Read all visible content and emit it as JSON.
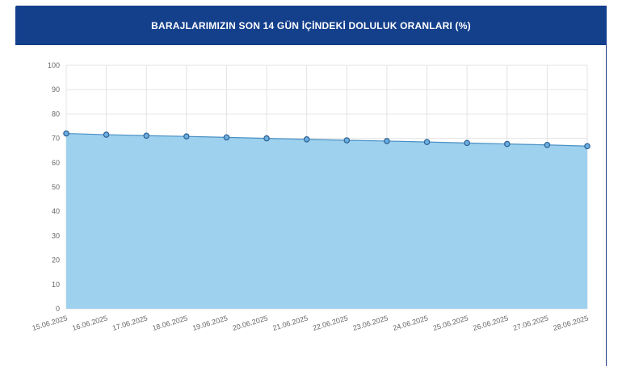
{
  "header": {
    "title": "BARAJLARIMIZIN SON 14 GÜN İÇİNDEKİ DOLULUK ORANLARI (%)"
  },
  "colors": {
    "header_bg": "#133f8b",
    "area_fill": "#9dd1ee",
    "line": "#4a90c4",
    "marker_stroke": "#2e5f93",
    "grid": "#e3e3e3"
  },
  "chart_data": {
    "type": "area",
    "title": "BARAJLARIMIZIN SON 14 GÜN İÇİNDEKİ DOLULUK ORANLARI (%)",
    "xlabel": "",
    "ylabel": "",
    "ylim": [
      0,
      100
    ],
    "yticks": [
      0,
      10,
      20,
      30,
      40,
      50,
      60,
      70,
      80,
      90,
      100
    ],
    "grid": true,
    "categories": [
      "15.06.2025",
      "16.06.2025",
      "17.06.2025",
      "18.06.2025",
      "19.06.2025",
      "20.06.2025",
      "21.06.2025",
      "22.06.2025",
      "23.06.2025",
      "24.06.2025",
      "25.06.2025",
      "26.06.2025",
      "27.06.2025",
      "28.06.2025"
    ],
    "series": [
      {
        "values": [
          72.0,
          71.5,
          71.1,
          70.8,
          70.4,
          70.0,
          69.6,
          69.2,
          68.9,
          68.5,
          68.1,
          67.7,
          67.3,
          66.8
        ]
      }
    ]
  }
}
